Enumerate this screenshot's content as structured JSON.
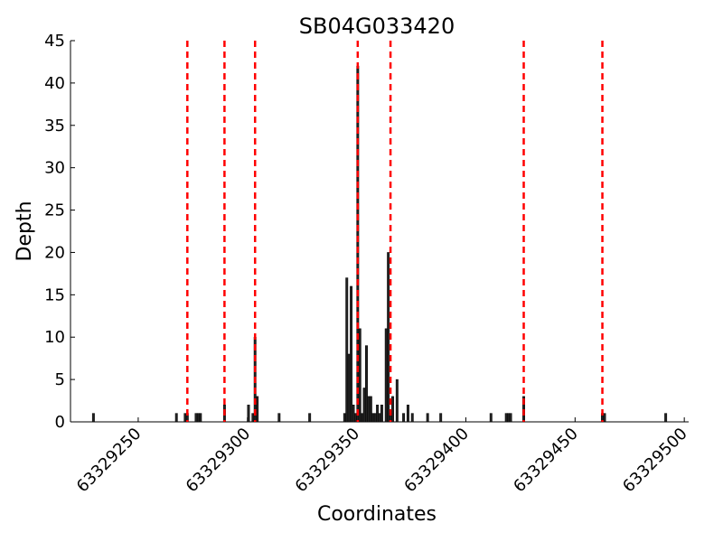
{
  "chart_data": {
    "type": "bar",
    "title": "SB04G033420",
    "x_label": "Coordinates",
    "y_label": "Depth",
    "x": [
      63329229,
      63329267,
      63329271,
      63329272,
      63329276,
      63329277,
      63329278,
      63329289,
      63329300,
      63329302,
      63329303,
      63329304,
      63329314,
      63329328,
      63329344,
      63329345,
      63329346,
      63329347,
      63329348,
      63329349,
      63329350,
      63329351,
      63329352,
      63329353,
      63329354,
      63329355,
      63329356,
      63329357,
      63329358,
      63329359,
      63329360,
      63329361,
      63329363,
      63329364,
      63329365,
      63329366,
      63329368,
      63329371,
      63329373,
      63329375,
      63329382,
      63329388,
      63329411,
      63329418,
      63329419,
      63329420,
      63329426,
      63329462,
      63329463,
      63329491
    ],
    "values": [
      1,
      1,
      1,
      1,
      1,
      1,
      1,
      2,
      2,
      1,
      10,
      3,
      1,
      1,
      1,
      17,
      8,
      16,
      2,
      1,
      42,
      11,
      1,
      4,
      9,
      3,
      3,
      1,
      1,
      2,
      1,
      2,
      11,
      20,
      1,
      3,
      5,
      1,
      2,
      1,
      1,
      1,
      1,
      1,
      1,
      1,
      3,
      1,
      1,
      1
    ],
    "color": "#222222",
    "vlines": [
      63329272,
      63329289,
      63329303,
      63329350,
      63329365,
      63329426,
      63329462
    ],
    "vline_color": "#ff0000",
    "xlim": [
      63329219,
      63329502
    ],
    "xticks": [
      63329250,
      63329300,
      63329350,
      63329400,
      63329450,
      63329500
    ],
    "ylim": [
      0,
      45
    ],
    "yticks": [
      0,
      5,
      10,
      15,
      20,
      25,
      30,
      35,
      40,
      45
    ]
  }
}
